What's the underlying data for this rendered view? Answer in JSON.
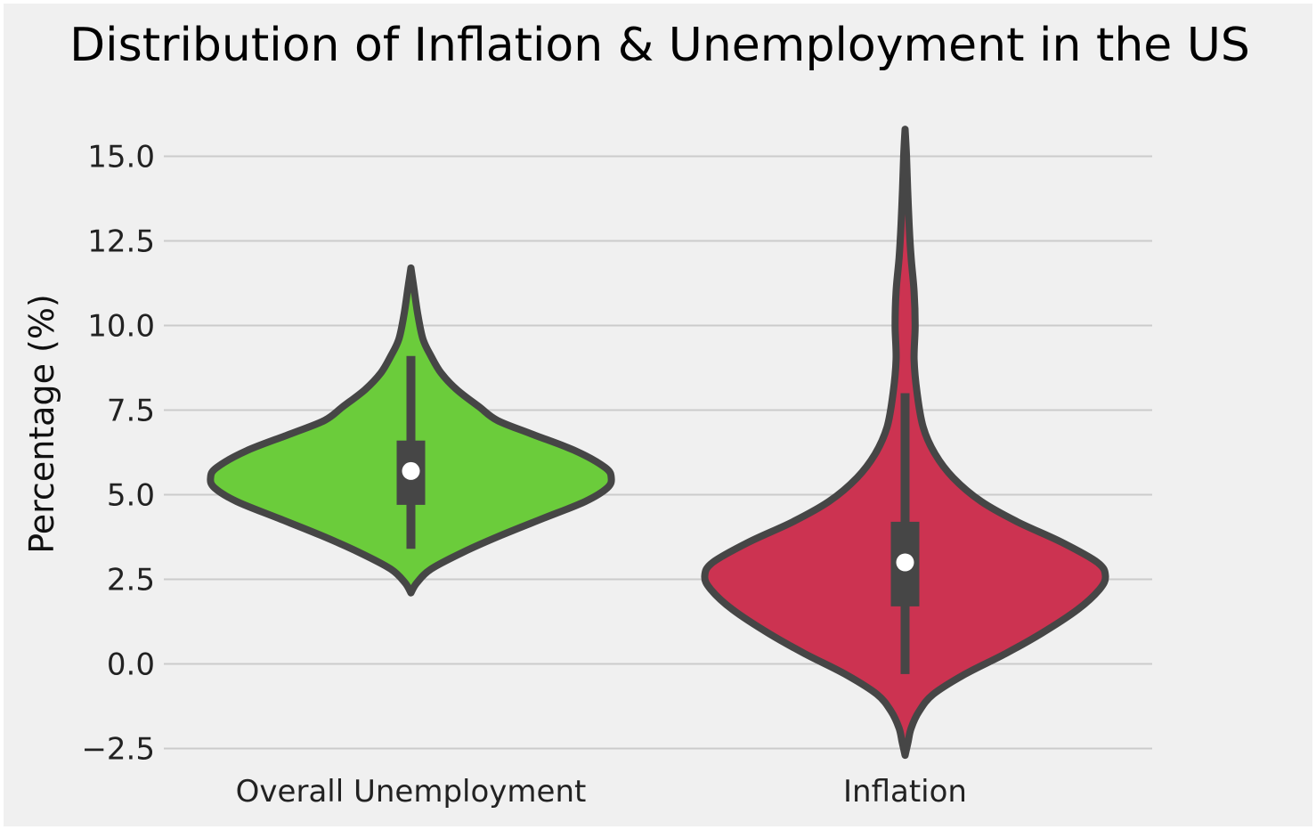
{
  "chart_data": {
    "type": "violin",
    "title": "Distribution of Inflation & Unemployment in the US",
    "xlabel": "",
    "ylabel": "Percentage (%)",
    "ylim": [
      -3.5,
      16.5
    ],
    "yticks": [
      -2.5,
      0.0,
      2.5,
      5.0,
      7.5,
      10.0,
      12.5,
      15.0
    ],
    "ytick_labels": [
      "−2.5",
      "0.0",
      "2.5",
      "5.0",
      "7.5",
      "10.0",
      "12.5",
      "15.0"
    ],
    "grid": "horizontal",
    "categories": [
      "Overall Unemployment",
      "Inflation"
    ],
    "series": [
      {
        "category": "Overall Unemployment",
        "color": "#6bcc3b",
        "median": 5.7,
        "q1": 4.7,
        "q3": 6.6,
        "whisker_low": 3.4,
        "whisker_high": 9.1,
        "density": [
          [
            2.1,
            0.0
          ],
          [
            2.4,
            0.03
          ],
          [
            2.8,
            0.1
          ],
          [
            3.3,
            0.26
          ],
          [
            3.8,
            0.45
          ],
          [
            4.3,
            0.66
          ],
          [
            4.8,
            0.87
          ],
          [
            5.2,
            0.98
          ],
          [
            5.5,
            1.0
          ],
          [
            5.8,
            0.97
          ],
          [
            6.3,
            0.82
          ],
          [
            6.8,
            0.6
          ],
          [
            7.2,
            0.43
          ],
          [
            7.6,
            0.34
          ],
          [
            8.1,
            0.23
          ],
          [
            8.6,
            0.15
          ],
          [
            9.1,
            0.1
          ],
          [
            9.6,
            0.06
          ],
          [
            10.3,
            0.035
          ],
          [
            11.1,
            0.015
          ],
          [
            11.7,
            0.0
          ]
        ]
      },
      {
        "category": "Inflation",
        "color": "#cc3351",
        "median": 3.0,
        "q1": 1.7,
        "q3": 4.2,
        "whisker_low": -0.3,
        "whisker_high": 8.0,
        "density": [
          [
            -2.7,
            0.0
          ],
          [
            -2.3,
            0.015
          ],
          [
            -1.9,
            0.03
          ],
          [
            -1.4,
            0.07
          ],
          [
            -0.9,
            0.14
          ],
          [
            -0.3,
            0.3
          ],
          [
            0.3,
            0.5
          ],
          [
            0.9,
            0.68
          ],
          [
            1.6,
            0.86
          ],
          [
            2.2,
            0.97
          ],
          [
            2.6,
            1.0
          ],
          [
            3.0,
            0.96
          ],
          [
            3.6,
            0.78
          ],
          [
            4.2,
            0.56
          ],
          [
            4.8,
            0.38
          ],
          [
            5.5,
            0.24
          ],
          [
            6.2,
            0.15
          ],
          [
            7.0,
            0.09
          ],
          [
            8.0,
            0.06
          ],
          [
            9.0,
            0.045
          ],
          [
            10.0,
            0.05
          ],
          [
            11.0,
            0.045
          ],
          [
            12.0,
            0.03
          ],
          [
            13.0,
            0.02
          ],
          [
            14.0,
            0.013
          ],
          [
            15.0,
            0.007
          ],
          [
            15.8,
            0.0
          ]
        ]
      }
    ]
  }
}
